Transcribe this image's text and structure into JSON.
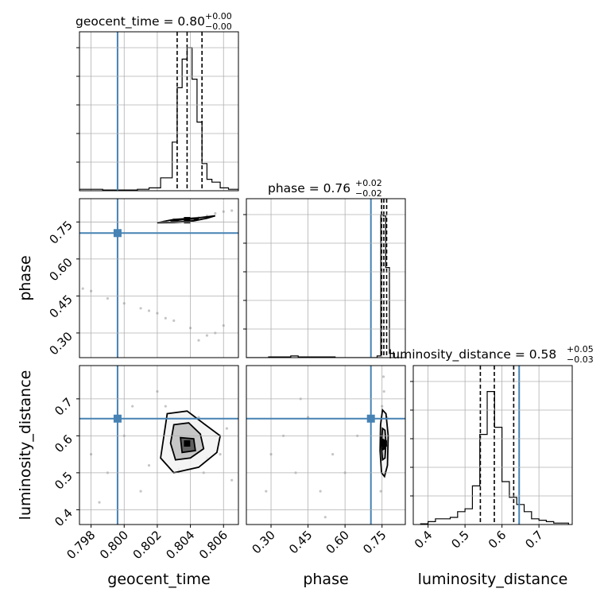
{
  "chart_data": {
    "type": "corner",
    "parameters": [
      "geocent_time",
      "phase",
      "luminosity_distance"
    ],
    "titles": [
      {
        "param": "geocent_time",
        "text": "geocent_time = 0.80",
        "plus": "+0.00",
        "minus": "−0.00"
      },
      {
        "param": "phase",
        "text": "phase = 0.76",
        "plus": "+0.02",
        "minus": "−0.02"
      },
      {
        "param": "luminosity_distance",
        "text": "luminosity_distance = 0.58",
        "plus": "+0.05",
        "minus": "−0.03"
      }
    ],
    "axis_labels": {
      "geocent_time": "geocent_time",
      "phase": "phase",
      "luminosity_distance": "luminosity_distance"
    },
    "ranges": {
      "geocent_time": [
        0.7973,
        0.8069
      ],
      "phase": [
        0.2,
        0.8444
      ],
      "luminosity_distance": [
        0.36,
        0.79
      ]
    },
    "ticks": {
      "geocent_time": [
        "0.798",
        "0.800",
        "0.802",
        "0.804",
        "0.806"
      ],
      "phase": [
        "0.30",
        "0.45",
        "0.60",
        "0.75"
      ],
      "luminosity_distance": [
        "0.4",
        "0.5",
        "0.6",
        "0.7"
      ]
    },
    "truths": {
      "geocent_time": 0.7996,
      "phase": 0.7049,
      "luminosity_distance": 0.6465
    },
    "quantiles": {
      "geocent_time": [
        0.8032,
        0.8038,
        0.8047
      ],
      "phase": [
        0.748,
        0.7572,
        0.7687
      ],
      "luminosity_distance": [
        0.5415,
        0.5793,
        0.6317
      ]
    },
    "histograms": {
      "geocent_time": {
        "edges": [
          0.7973,
          0.798,
          0.7987,
          0.7994,
          0.8001,
          0.8008,
          0.8015,
          0.8022,
          0.8029,
          0.8032,
          0.8035,
          0.8038,
          0.8041,
          0.8044,
          0.8047,
          0.805,
          0.8053,
          0.8058,
          0.8063,
          0.8069
        ],
        "counts": [
          0.01,
          0.01,
          0.005,
          0.005,
          0.005,
          0.01,
          0.02,
          0.09,
          0.34,
          0.72,
          0.92,
          1.0,
          0.78,
          0.48,
          0.19,
          0.08,
          0.06,
          0.02,
          0.01
        ]
      },
      "phase": {
        "edges": [
          0.2,
          0.23,
          0.26,
          0.29,
          0.32,
          0.35,
          0.38,
          0.41,
          0.44,
          0.47,
          0.5,
          0.53,
          0.56,
          0.59,
          0.62,
          0.65,
          0.68,
          0.71,
          0.73,
          0.745,
          0.755,
          0.765,
          0.78,
          0.8
        ],
        "counts": [
          0,
          0,
          0,
          0.005,
          0.005,
          0.005,
          0.012,
          0.005,
          0.005,
          0.005,
          0.005,
          0.005,
          0,
          0,
          0,
          0,
          0,
          0,
          0.012,
          1.0,
          0.99,
          0.63,
          0.03
        ]
      },
      "luminosity_distance": {
        "edges": [
          0.38,
          0.4,
          0.42,
          0.44,
          0.46,
          0.48,
          0.5,
          0.52,
          0.54,
          0.56,
          0.58,
          0.6,
          0.62,
          0.64,
          0.66,
          0.68,
          0.7,
          0.72,
          0.74,
          0.76,
          0.78
        ],
        "counts": [
          0.005,
          0.02,
          0.04,
          0.04,
          0.05,
          0.09,
          0.11,
          0.27,
          0.63,
          0.93,
          0.68,
          0.3,
          0.19,
          0.14,
          0.09,
          0.04,
          0.03,
          0.02,
          0.01,
          0.01
        ]
      }
    },
    "scatter": {
      "geocent_time_vs_phase": [
        [
          0.803,
          0.76
        ],
        [
          0.8035,
          0.758
        ],
        [
          0.804,
          0.762
        ],
        [
          0.8045,
          0.768
        ],
        [
          0.805,
          0.775
        ],
        [
          0.8055,
          0.785
        ],
        [
          0.806,
          0.792
        ],
        [
          0.8065,
          0.796
        ],
        [
          0.7975,
          0.48
        ],
        [
          0.798,
          0.47
        ],
        [
          0.799,
          0.44
        ],
        [
          0.8,
          0.42
        ],
        [
          0.801,
          0.4
        ],
        [
          0.802,
          0.38
        ],
        [
          0.803,
          0.35
        ],
        [
          0.804,
          0.32
        ],
        [
          0.8045,
          0.27
        ],
        [
          0.805,
          0.29
        ],
        [
          0.8055,
          0.3
        ],
        [
          0.806,
          0.33
        ],
        [
          0.8025,
          0.36
        ],
        [
          0.8015,
          0.39
        ]
      ],
      "geocent_time_vs_distance": [
        [
          0.8038,
          0.575
        ],
        [
          0.8035,
          0.6
        ],
        [
          0.8042,
          0.56
        ],
        [
          0.803,
          0.63
        ],
        [
          0.805,
          0.54
        ],
        [
          0.8045,
          0.65
        ],
        [
          0.8028,
          0.56
        ],
        [
          0.8055,
          0.6
        ],
        [
          0.8033,
          0.51
        ],
        [
          0.8048,
          0.5
        ],
        [
          0.8025,
          0.68
        ],
        [
          0.8058,
          0.55
        ],
        [
          0.802,
          0.72
        ],
        [
          0.8062,
          0.62
        ],
        [
          0.801,
          0.45
        ],
        [
          0.8,
          0.6
        ],
        [
          0.799,
          0.5
        ],
        [
          0.7985,
          0.42
        ],
        [
          0.798,
          0.55
        ],
        [
          0.8005,
          0.68
        ],
        [
          0.8015,
          0.52
        ],
        [
          0.8065,
          0.48
        ]
      ],
      "phase_vs_distance": [
        [
          0.755,
          0.575
        ],
        [
          0.752,
          0.6
        ],
        [
          0.76,
          0.56
        ],
        [
          0.748,
          0.62
        ],
        [
          0.765,
          0.54
        ],
        [
          0.75,
          0.68
        ],
        [
          0.758,
          0.72
        ],
        [
          0.762,
          0.5
        ],
        [
          0.745,
          0.45
        ],
        [
          0.77,
          0.65
        ],
        [
          0.756,
          0.76
        ],
        [
          0.3,
          0.55
        ],
        [
          0.35,
          0.6
        ],
        [
          0.4,
          0.5
        ],
        [
          0.45,
          0.65
        ],
        [
          0.5,
          0.45
        ],
        [
          0.55,
          0.55
        ],
        [
          0.6,
          0.5
        ],
        [
          0.65,
          0.6
        ],
        [
          0.28,
          0.45
        ],
        [
          0.42,
          0.7
        ],
        [
          0.52,
          0.38
        ]
      ]
    },
    "contours": {
      "geocent_time_vs_phase": [
        [
          [
            0.802,
            0.747
          ],
          [
            0.803,
            0.76
          ],
          [
            0.8045,
            0.767
          ],
          [
            0.8055,
            0.775
          ],
          [
            0.805,
            0.765
          ],
          [
            0.804,
            0.752
          ],
          [
            0.803,
            0.748
          ],
          [
            0.802,
            0.747
          ]
        ],
        [
          [
            0.8028,
            0.752
          ],
          [
            0.8036,
            0.761
          ],
          [
            0.8045,
            0.763
          ],
          [
            0.8042,
            0.755
          ],
          [
            0.8034,
            0.751
          ],
          [
            0.8028,
            0.752
          ]
        ]
      ],
      "geocent_time_vs_distance": [
        [
          [
            0.8026,
            0.66
          ],
          [
            0.8038,
            0.667
          ],
          [
            0.8046,
            0.64
          ],
          [
            0.8058,
            0.6
          ],
          [
            0.8056,
            0.555
          ],
          [
            0.8045,
            0.515
          ],
          [
            0.803,
            0.5
          ],
          [
            0.8022,
            0.54
          ],
          [
            0.8024,
            0.6
          ],
          [
            0.8026,
            0.66
          ]
        ],
        [
          [
            0.803,
            0.63
          ],
          [
            0.8039,
            0.635
          ],
          [
            0.8046,
            0.605
          ],
          [
            0.8048,
            0.565
          ],
          [
            0.804,
            0.54
          ],
          [
            0.8031,
            0.535
          ],
          [
            0.8028,
            0.58
          ],
          [
            0.803,
            0.63
          ]
        ],
        [
          [
            0.8034,
            0.595
          ],
          [
            0.8042,
            0.592
          ],
          [
            0.8043,
            0.56
          ],
          [
            0.8035,
            0.555
          ],
          [
            0.8034,
            0.595
          ]
        ]
      ],
      "phase_vs_distance": [
        [
          [
            0.752,
            0.67
          ],
          [
            0.766,
            0.66
          ],
          [
            0.775,
            0.6
          ],
          [
            0.772,
            0.52
          ],
          [
            0.76,
            0.49
          ],
          [
            0.748,
            0.5
          ],
          [
            0.742,
            0.56
          ],
          [
            0.744,
            0.63
          ],
          [
            0.752,
            0.67
          ]
        ],
        [
          [
            0.752,
            0.62
          ],
          [
            0.762,
            0.615
          ],
          [
            0.766,
            0.58
          ],
          [
            0.762,
            0.54
          ],
          [
            0.752,
            0.535
          ],
          [
            0.747,
            0.575
          ],
          [
            0.752,
            0.62
          ]
        ],
        [
          [
            0.754,
            0.59
          ],
          [
            0.76,
            0.588
          ],
          [
            0.76,
            0.565
          ],
          [
            0.754,
            0.563
          ],
          [
            0.754,
            0.59
          ]
        ]
      ]
    },
    "colors": {
      "truth": "#4682b4",
      "hist": "#000000",
      "scatter": "#808080",
      "grid": "#b0b0b0"
    }
  }
}
